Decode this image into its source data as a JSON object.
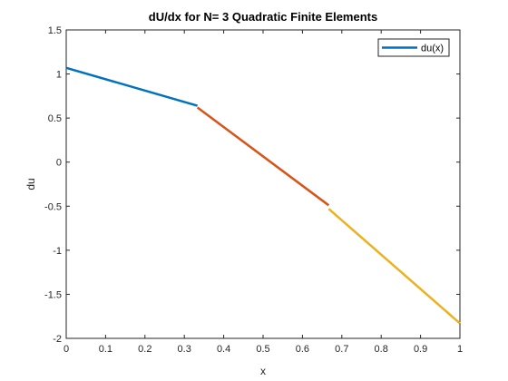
{
  "chart_data": {
    "type": "line",
    "title": "dU/dx for N= 3 Quadratic Finite Elements",
    "xlabel": "x",
    "ylabel": "du",
    "xlim": [
      0,
      1
    ],
    "ylim": [
      -2,
      1.5
    ],
    "xticks": [
      "0",
      "0.1",
      "0.2",
      "0.3",
      "0.4",
      "0.5",
      "0.6",
      "0.7",
      "0.8",
      "0.9",
      "1"
    ],
    "yticks": [
      "-2",
      "-1.5",
      "-1",
      "-0.5",
      "0",
      "0.5",
      "1",
      "1.5"
    ],
    "grid": false,
    "legend": {
      "entries": [
        "du(x)"
      ],
      "location": "top-right"
    },
    "series": [
      {
        "name": "du(x)",
        "color": "#0072BD",
        "x": [
          0,
          0.3333
        ],
        "y": [
          1.07,
          0.64
        ]
      },
      {
        "color": "#D95319",
        "x": [
          0.3333,
          0.6667
        ],
        "y": [
          0.62,
          -0.49
        ]
      },
      {
        "color": "#EDB120",
        "x": [
          0.6667,
          1.0
        ],
        "y": [
          -0.53,
          -1.83
        ]
      }
    ]
  }
}
